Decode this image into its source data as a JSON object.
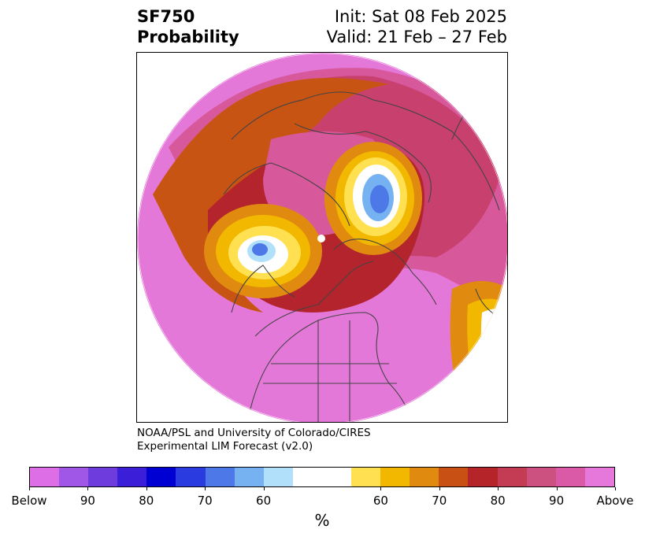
{
  "header": {
    "title_line1": "SF750",
    "title_line2": "Probability",
    "init": "Init: Sat 08 Feb 2025",
    "valid": "Valid: 21 Feb – 27 Feb"
  },
  "credit": {
    "line1": "NOAA/PSL and University of Colorado/CIRES",
    "line2": "Experimental LIM Forecast (v2.0)"
  },
  "colorbar": {
    "unit": "%",
    "colors": [
      "#dd6ee6",
      "#a056e6",
      "#6e3cdc",
      "#3a1ed8",
      "#0000d2",
      "#2a3ce0",
      "#4c78e8",
      "#76b2f2",
      "#b0e0fa",
      "#ffffff",
      "#ffe050",
      "#f2b800",
      "#e08a10",
      "#c85014",
      "#b42428",
      "#c43c54",
      "#cc5080",
      "#da5aa8",
      "#e678dc"
    ],
    "weights": [
      1,
      1,
      1,
      1,
      1,
      1,
      1,
      1,
      1,
      2,
      1,
      1,
      1,
      1,
      1,
      1,
      1,
      1,
      1
    ],
    "tick_labels": [
      "Below",
      "90",
      "80",
      "70",
      "60",
      "60",
      "70",
      "80",
      "90",
      "Above"
    ]
  },
  "map": {
    "colors": {
      "above_high": "#e478d8",
      "above_90": "#d8589c",
      "above_80": "#c8406e",
      "above_75": "#b4242c",
      "orange": "#c85414",
      "amber": "#e08a10",
      "gold": "#f2b800",
      "yellow": "#ffe050",
      "neutral": "#ffffff",
      "below_light": "#b0e0fa",
      "below_mid": "#76b2f2",
      "below_strong": "#4c78e8",
      "coast": "#444444"
    }
  }
}
